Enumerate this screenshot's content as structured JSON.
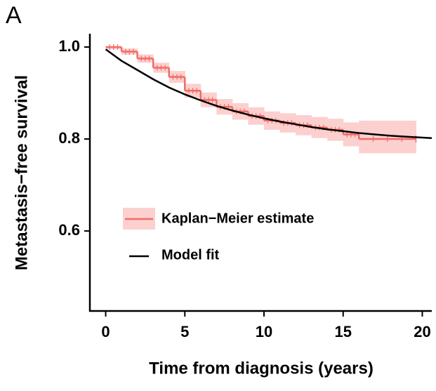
{
  "chart_data": {
    "type": "line",
    "panel_label": "A",
    "x_label": "Time from diagnosis (years)",
    "y_label": "Metastasis−free survival",
    "xlim": [
      -1,
      20.6
    ],
    "ylim": [
      0.426,
      1.029
    ],
    "xticks": [
      0,
      5,
      10,
      15,
      20
    ],
    "yticks": [
      {
        "value": 0.6,
        "label": "0.6"
      },
      {
        "value": 0.8,
        "label": "0.8"
      },
      {
        "value": 1.0,
        "label": "1.0"
      }
    ],
    "series": [
      {
        "name": "Kaplan−Meier estimate",
        "color": "#f26b66",
        "band_color": "#fcd0cf",
        "step": true,
        "x": [
          0,
          1,
          2,
          3,
          4,
          5,
          6,
          7,
          8,
          9,
          10,
          11,
          12,
          13,
          14,
          15,
          16,
          19.6
        ],
        "values": [
          1.0,
          0.99,
          0.975,
          0.955,
          0.935,
          0.905,
          0.885,
          0.87,
          0.86,
          0.85,
          0.84,
          0.835,
          0.83,
          0.825,
          0.82,
          0.81,
          0.8,
          0.8
        ],
        "lower": [
          0.995,
          0.983,
          0.966,
          0.944,
          0.922,
          0.89,
          0.869,
          0.853,
          0.842,
          0.831,
          0.82,
          0.814,
          0.808,
          0.802,
          0.796,
          0.784,
          0.769,
          0.769
        ],
        "upper": [
          1.0,
          0.997,
          0.984,
          0.966,
          0.948,
          0.92,
          0.901,
          0.887,
          0.878,
          0.869,
          0.86,
          0.856,
          0.852,
          0.848,
          0.844,
          0.836,
          0.84,
          0.84
        ]
      },
      {
        "name": "Model fit",
        "color": "#000000",
        "x": [
          0,
          1,
          2,
          3,
          4,
          5,
          6,
          7,
          8,
          9,
          10,
          11,
          12,
          13,
          14,
          15,
          16,
          17,
          18,
          19,
          20,
          20.6
        ],
        "values": [
          0.995,
          0.97,
          0.95,
          0.93,
          0.912,
          0.897,
          0.884,
          0.872,
          0.862,
          0.853,
          0.845,
          0.838,
          0.832,
          0.826,
          0.821,
          0.817,
          0.813,
          0.81,
          0.807,
          0.805,
          0.803,
          0.802
        ]
      }
    ]
  }
}
